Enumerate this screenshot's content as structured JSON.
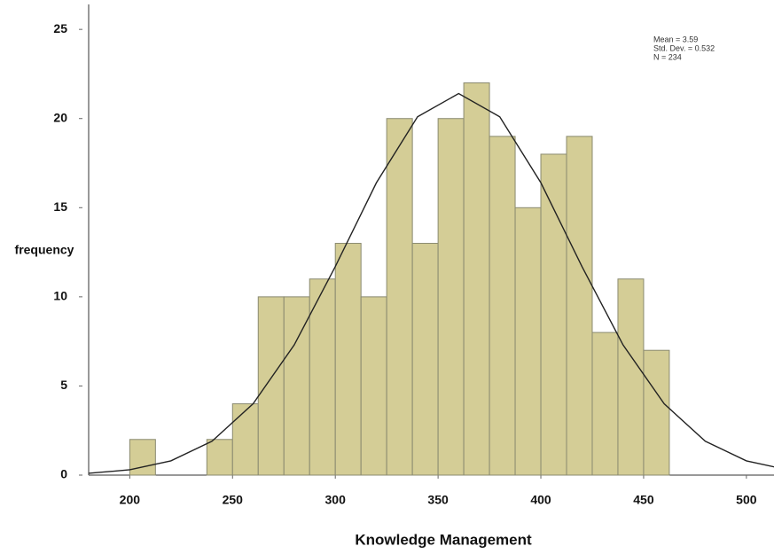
{
  "chart_data": {
    "type": "histogram",
    "x_label": "Knowledge Management",
    "y_label": "frequency",
    "bins": [
      200,
      212.5,
      225,
      237.5,
      250,
      262.5,
      275,
      287.5,
      300,
      312.5,
      325,
      337.5,
      350,
      362.5,
      375,
      387.5,
      400,
      412.5,
      425,
      437.5,
      450,
      462.5
    ],
    "values": [
      2,
      0,
      0,
      2,
      4,
      10,
      10,
      11,
      13,
      10,
      20,
      13,
      20,
      22,
      19,
      15,
      18,
      19,
      8,
      11,
      7
    ],
    "color": "#d4cd96",
    "curve": {
      "x": [
        180,
        200,
        220,
        240,
        260,
        280,
        300,
        320,
        340,
        360,
        380,
        400,
        420,
        440,
        460,
        480,
        500,
        520
      ],
      "values": [
        0.1,
        0.3,
        0.8,
        1.9,
        4.0,
        7.3,
        11.7,
        16.4,
        20.1,
        21.4,
        20.1,
        16.4,
        11.7,
        7.3,
        4.0,
        1.9,
        0.8,
        0.3
      ],
      "color": "#222222"
    },
    "annotations": [
      "Mean = 3.59",
      "Std. Dev. = 0.532",
      "N = 234"
    ],
    "xlim": [
      180,
      513
    ],
    "ylim": [
      0,
      26.4
    ],
    "xticks": [
      200,
      250,
      300,
      350,
      400,
      450,
      500
    ],
    "yticks": [
      0,
      5,
      10,
      15,
      20,
      25
    ]
  }
}
